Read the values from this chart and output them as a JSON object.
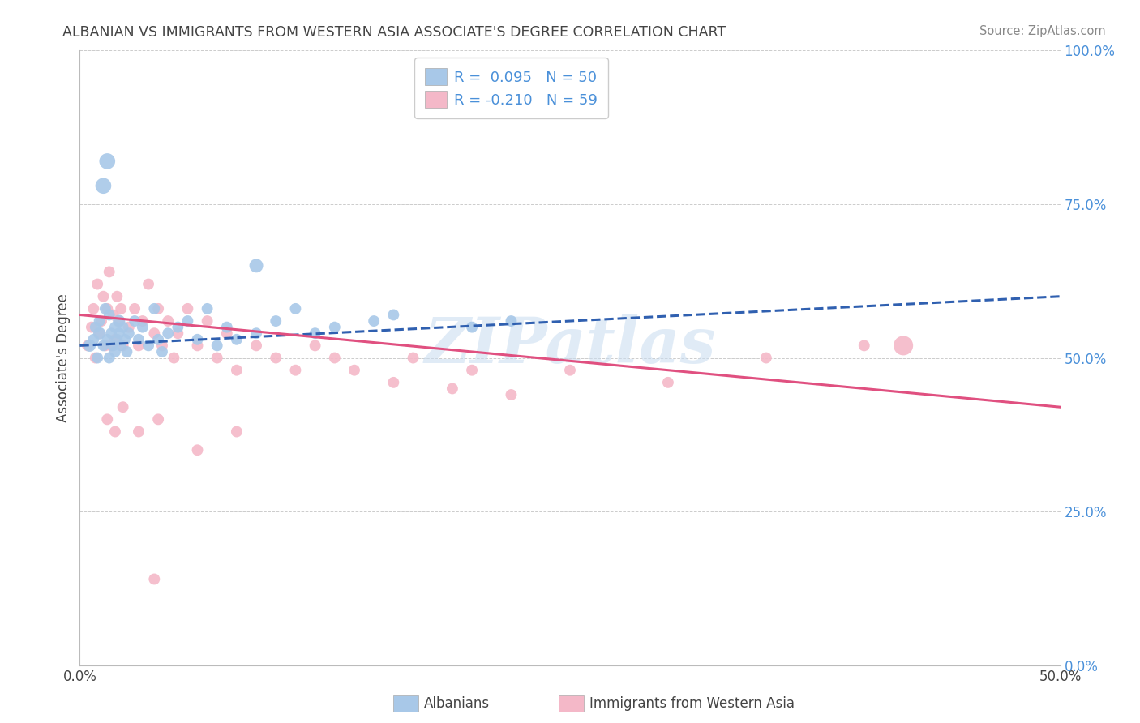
{
  "title": "ALBANIAN VS IMMIGRANTS FROM WESTERN ASIA ASSOCIATE'S DEGREE CORRELATION CHART",
  "source": "Source: ZipAtlas.com",
  "ylabel": "Associate's Degree",
  "watermark": "ZIPatlas",
  "xlim": [
    0.0,
    0.5
  ],
  "ylim": [
    0.0,
    1.0
  ],
  "ytick_positions": [
    0.0,
    0.25,
    0.5,
    0.75,
    1.0
  ],
  "xtick_positions": [
    0.0,
    0.5
  ],
  "R1": 0.095,
  "N1": 50,
  "R2": -0.21,
  "N2": 59,
  "legend_label1": "Albanians",
  "legend_label2": "Immigrants from Western Asia",
  "series1_color": "#a8c8e8",
  "series2_color": "#f4b8c8",
  "line1_color": "#3060b0",
  "line2_color": "#e05080",
  "line1_dash": true,
  "line2_dash": false,
  "background_color": "#ffffff",
  "grid_color": "#cccccc",
  "tick_color": "#4a90d9",
  "title_color": "#444444",
  "source_color": "#888888",
  "series1_x": [
    0.005,
    0.007,
    0.008,
    0.009,
    0.01,
    0.01,
    0.012,
    0.013,
    0.014,
    0.015,
    0.015,
    0.016,
    0.017,
    0.018,
    0.018,
    0.019,
    0.02,
    0.02,
    0.021,
    0.022,
    0.023,
    0.024,
    0.025,
    0.028,
    0.03,
    0.032,
    0.035,
    0.038,
    0.04,
    0.042,
    0.045,
    0.05,
    0.055,
    0.06,
    0.065,
    0.07,
    0.075,
    0.08,
    0.09,
    0.1,
    0.11,
    0.12,
    0.13,
    0.15,
    0.16,
    0.2,
    0.012,
    0.014,
    0.09,
    0.22
  ],
  "series1_y": [
    0.52,
    0.53,
    0.55,
    0.5,
    0.54,
    0.56,
    0.52,
    0.58,
    0.53,
    0.57,
    0.5,
    0.54,
    0.52,
    0.55,
    0.51,
    0.53,
    0.56,
    0.54,
    0.52,
    0.55,
    0.53,
    0.51,
    0.54,
    0.56,
    0.53,
    0.55,
    0.52,
    0.58,
    0.53,
    0.51,
    0.54,
    0.55,
    0.56,
    0.53,
    0.58,
    0.52,
    0.55,
    0.53,
    0.54,
    0.56,
    0.58,
    0.54,
    0.55,
    0.56,
    0.57,
    0.55,
    0.78,
    0.82,
    0.65,
    0.56
  ],
  "series2_x": [
    0.004,
    0.006,
    0.007,
    0.008,
    0.009,
    0.01,
    0.011,
    0.012,
    0.013,
    0.014,
    0.015,
    0.016,
    0.017,
    0.018,
    0.019,
    0.02,
    0.021,
    0.022,
    0.025,
    0.028,
    0.03,
    0.032,
    0.035,
    0.038,
    0.04,
    0.042,
    0.045,
    0.048,
    0.05,
    0.055,
    0.06,
    0.065,
    0.07,
    0.075,
    0.08,
    0.09,
    0.1,
    0.11,
    0.12,
    0.13,
    0.14,
    0.16,
    0.17,
    0.19,
    0.2,
    0.22,
    0.25,
    0.3,
    0.35,
    0.4,
    0.014,
    0.018,
    0.022,
    0.03,
    0.04,
    0.06,
    0.08,
    0.038,
    0.42
  ],
  "series2_y": [
    0.52,
    0.55,
    0.58,
    0.5,
    0.62,
    0.54,
    0.56,
    0.6,
    0.52,
    0.58,
    0.64,
    0.52,
    0.57,
    0.53,
    0.6,
    0.56,
    0.58,
    0.52,
    0.55,
    0.58,
    0.52,
    0.56,
    0.62,
    0.54,
    0.58,
    0.52,
    0.56,
    0.5,
    0.54,
    0.58,
    0.52,
    0.56,
    0.5,
    0.54,
    0.48,
    0.52,
    0.5,
    0.48,
    0.52,
    0.5,
    0.48,
    0.46,
    0.5,
    0.45,
    0.48,
    0.44,
    0.48,
    0.46,
    0.5,
    0.52,
    0.4,
    0.38,
    0.42,
    0.38,
    0.4,
    0.35,
    0.38,
    0.14,
    0.52
  ],
  "series1_sizes": [
    120,
    100,
    100,
    100,
    120,
    100,
    100,
    100,
    100,
    100,
    100,
    100,
    100,
    100,
    100,
    100,
    120,
    100,
    100,
    100,
    100,
    100,
    100,
    100,
    100,
    100,
    100,
    100,
    100,
    100,
    100,
    100,
    100,
    100,
    100,
    100,
    100,
    100,
    100,
    100,
    100,
    100,
    100,
    100,
    100,
    100,
    200,
    200,
    150,
    100
  ],
  "series2_sizes": [
    100,
    100,
    100,
    100,
    100,
    100,
    100,
    100,
    100,
    100,
    100,
    100,
    100,
    100,
    100,
    100,
    100,
    100,
    100,
    100,
    100,
    100,
    100,
    100,
    100,
    100,
    100,
    100,
    100,
    100,
    100,
    100,
    100,
    100,
    100,
    100,
    100,
    100,
    100,
    100,
    100,
    100,
    100,
    100,
    100,
    100,
    100,
    100,
    100,
    100,
    100,
    100,
    100,
    100,
    100,
    100,
    100,
    100,
    300
  ],
  "line1_x0": 0.0,
  "line1_y0": 0.52,
  "line1_x1": 0.5,
  "line1_y1": 0.6,
  "line2_x0": 0.0,
  "line2_y0": 0.57,
  "line2_x1": 0.5,
  "line2_y1": 0.42
}
